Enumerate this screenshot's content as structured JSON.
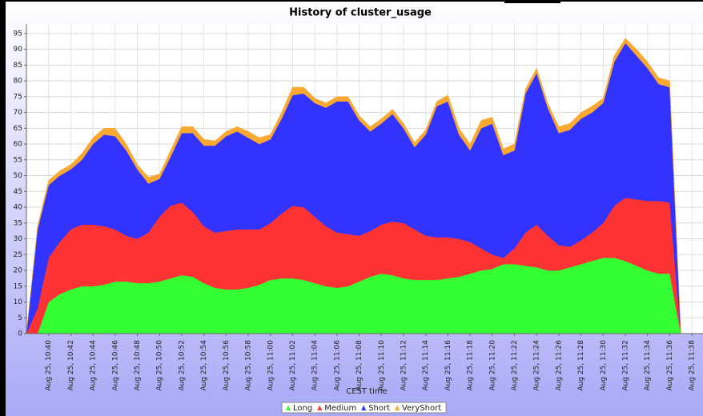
{
  "chart_data": {
    "type": "area",
    "stacked": true,
    "title": "History of cluster_usage",
    "xlabel": "CEST time",
    "x": [
      "Aug 25, 10:38",
      "Aug 25, 10:39",
      "Aug 25, 10:40",
      "Aug 25, 10:41",
      "Aug 25, 10:42",
      "Aug 25, 10:43",
      "Aug 25, 10:44",
      "Aug 25, 10:45",
      "Aug 25, 10:46",
      "Aug 25, 10:47",
      "Aug 25, 10:48",
      "Aug 25, 10:49",
      "Aug 25, 10:50",
      "Aug 25, 10:51",
      "Aug 25, 10:52",
      "Aug 25, 10:53",
      "Aug 25, 10:54",
      "Aug 25, 10:55",
      "Aug 25, 10:56",
      "Aug 25, 10:57",
      "Aug 25, 10:58",
      "Aug 25, 10:59",
      "Aug 25, 11:00",
      "Aug 25, 11:01",
      "Aug 25, 11:02",
      "Aug 25, 11:03",
      "Aug 25, 11:04",
      "Aug 25, 11:05",
      "Aug 25, 11:06",
      "Aug 25, 11:07",
      "Aug 25, 11:08",
      "Aug 25, 11:09",
      "Aug 25, 11:10",
      "Aug 25, 11:11",
      "Aug 25, 11:12",
      "Aug 25, 11:13",
      "Aug 25, 11:14",
      "Aug 25, 11:15",
      "Aug 25, 11:16",
      "Aug 25, 11:17",
      "Aug 25, 11:18",
      "Aug 25, 11:19",
      "Aug 25, 11:20",
      "Aug 25, 11:21",
      "Aug 25, 11:22",
      "Aug 25, 11:23",
      "Aug 25, 11:24",
      "Aug 25, 11:25",
      "Aug 25, 11:26",
      "Aug 25, 11:27",
      "Aug 25, 11:28",
      "Aug 25, 11:29",
      "Aug 25, 11:30",
      "Aug 25, 11:31",
      "Aug 25, 11:32",
      "Aug 25, 11:33",
      "Aug 25, 11:34",
      "Aug 25, 11:35",
      "Aug 25, 11:36",
      "Aug 25, 11:37"
    ],
    "xlim": [
      "Aug 25, 10:38",
      "Aug 25, 11:39"
    ],
    "xticks": [
      "Aug 25, 10:40",
      "Aug 25, 10:42",
      "Aug 25, 10:44",
      "Aug 25, 10:46",
      "Aug 25, 10:48",
      "Aug 25, 10:50",
      "Aug 25, 10:52",
      "Aug 25, 10:54",
      "Aug 25, 10:56",
      "Aug 25, 10:58",
      "Aug 25, 11:00",
      "Aug 25, 11:02",
      "Aug 25, 11:04",
      "Aug 25, 11:06",
      "Aug 25, 11:08",
      "Aug 25, 11:10",
      "Aug 25, 11:12",
      "Aug 25, 11:14",
      "Aug 25, 11:16",
      "Aug 25, 11:18",
      "Aug 25, 11:20",
      "Aug 25, 11:22",
      "Aug 25, 11:24",
      "Aug 25, 11:26",
      "Aug 25, 11:28",
      "Aug 25, 11:30",
      "Aug 25, 11:32",
      "Aug 25, 11:34",
      "Aug 25, 11:36",
      "Aug 25, 11:38"
    ],
    "ylim": [
      0,
      98
    ],
    "yticks": [
      0,
      5,
      10,
      15,
      20,
      25,
      30,
      35,
      40,
      45,
      50,
      55,
      60,
      65,
      70,
      75,
      80,
      85,
      90,
      95
    ],
    "grid": true,
    "legend": "bottom",
    "series": [
      {
        "name": "Long",
        "color": "#33ff33",
        "values": [
          0,
          0,
          10,
          12.5,
          14,
          15,
          15,
          15.5,
          16.5,
          16.5,
          16,
          16,
          16.5,
          17.5,
          18.5,
          18,
          16,
          14.5,
          14,
          14,
          14.5,
          15.5,
          17,
          17.5,
          17.5,
          17,
          16,
          15,
          14.5,
          15,
          16.5,
          18,
          19,
          18.5,
          17.5,
          17,
          17,
          17,
          17.5,
          18,
          19,
          20,
          20.5,
          22,
          22,
          21.5,
          21,
          20,
          20,
          21,
          22,
          23,
          24,
          24,
          23,
          21.5,
          20,
          19,
          19,
          0
        ]
      },
      {
        "name": "Medium",
        "color": "#ff3333",
        "values": [
          0,
          8,
          14,
          16.5,
          19,
          19.5,
          19.5,
          18.5,
          16.5,
          14.5,
          14,
          16,
          20.5,
          23,
          23,
          20.5,
          18,
          17.5,
          18.5,
          19,
          18.5,
          17.5,
          18,
          20.5,
          23,
          23,
          21,
          19,
          17.5,
          16.5,
          14.5,
          14.5,
          15.5,
          17,
          17.5,
          16,
          14,
          13.5,
          13,
          12,
          10,
          7,
          4.5,
          2,
          5,
          10.5,
          13.5,
          11,
          8,
          6.5,
          7.5,
          9,
          11,
          16.5,
          20,
          21,
          22,
          23,
          22.5,
          0
        ]
      },
      {
        "name": "Short",
        "color": "#3333ff",
        "values": [
          0,
          25,
          23,
          21,
          19,
          20.5,
          25.5,
          29,
          29.5,
          27,
          22,
          15.5,
          12,
          15.5,
          22,
          25,
          25.5,
          27.5,
          30,
          31,
          29,
          27,
          26.5,
          30,
          35,
          36,
          36,
          37.5,
          41.5,
          42,
          36.5,
          31.5,
          32,
          34,
          30,
          26,
          32,
          41.5,
          43,
          33,
          29,
          38,
          41.5,
          32.5,
          31,
          44,
          48,
          40.5,
          35.5,
          37,
          38.5,
          38,
          38,
          45.5,
          49,
          45.5,
          42,
          37,
          36.5,
          0
        ]
      },
      {
        "name": "VeryShort",
        "color": "#f9a832",
        "values": [
          0,
          1,
          1.5,
          1.5,
          1.5,
          2,
          2,
          2,
          2.5,
          2,
          1.5,
          2,
          1.5,
          2,
          2,
          2,
          2,
          1.5,
          1.5,
          1.5,
          2,
          2,
          1.5,
          2,
          2.5,
          2,
          1.5,
          1.5,
          1.5,
          1.5,
          1.5,
          1.5,
          1.5,
          1.5,
          1.5,
          1.5,
          1.5,
          1.5,
          2,
          2,
          2,
          2.5,
          2,
          2,
          2,
          1.5,
          1.5,
          1.5,
          2,
          2,
          2,
          2,
          1.5,
          2,
          1.5,
          2,
          2,
          2,
          2,
          0
        ]
      }
    ]
  }
}
